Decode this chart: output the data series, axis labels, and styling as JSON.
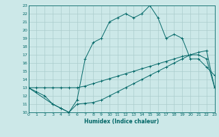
{
  "xlabel": "Humidex (Indice chaleur)",
  "xlim": [
    0,
    23
  ],
  "ylim": [
    10,
    23
  ],
  "xticks": [
    0,
    1,
    2,
    3,
    4,
    5,
    6,
    7,
    8,
    9,
    10,
    11,
    12,
    13,
    14,
    15,
    16,
    17,
    18,
    19,
    20,
    21,
    22,
    23
  ],
  "yticks": [
    10,
    11,
    12,
    13,
    14,
    15,
    16,
    17,
    18,
    19,
    20,
    21,
    22,
    23
  ],
  "bg_color": "#cce8e8",
  "grid_color": "#aacccc",
  "line_color": "#006666",
  "curve1_x": [
    0,
    1,
    2,
    3,
    4,
    5,
    6,
    7,
    8,
    9,
    10,
    11,
    12,
    13,
    14,
    15,
    16,
    17,
    18,
    19,
    20,
    21,
    22,
    23
  ],
  "curve1_y": [
    13,
    12.5,
    12,
    11,
    10.5,
    10,
    11,
    11.1,
    11.2,
    11.5,
    12,
    12.5,
    13,
    13.5,
    14,
    14.5,
    15,
    15.5,
    16,
    16.5,
    17,
    17,
    16.5,
    13
  ],
  "curve2_x": [
    0,
    1,
    2,
    3,
    4,
    5,
    6,
    7,
    8,
    9,
    10,
    11,
    12,
    13,
    14,
    15,
    16,
    17,
    18,
    19,
    20,
    21,
    22,
    23
  ],
  "curve2_y": [
    13,
    13,
    13,
    13,
    13,
    13,
    13,
    13.2,
    13.5,
    13.8,
    14.1,
    14.4,
    14.7,
    15,
    15.3,
    15.6,
    15.9,
    16.2,
    16.5,
    16.8,
    17,
    17.3,
    17.5,
    13
  ],
  "curve3_x": [
    0,
    3,
    4,
    5,
    6,
    7,
    8,
    9,
    10,
    11,
    12,
    13,
    14,
    15,
    16,
    17,
    18,
    19,
    20,
    21,
    22,
    23
  ],
  "curve3_y": [
    13,
    11,
    10.5,
    10,
    11.5,
    16.5,
    18.5,
    19,
    21,
    21.5,
    22,
    21.5,
    22,
    23,
    21.5,
    19,
    19.5,
    19,
    16.5,
    16.5,
    15.5,
    14.5
  ]
}
